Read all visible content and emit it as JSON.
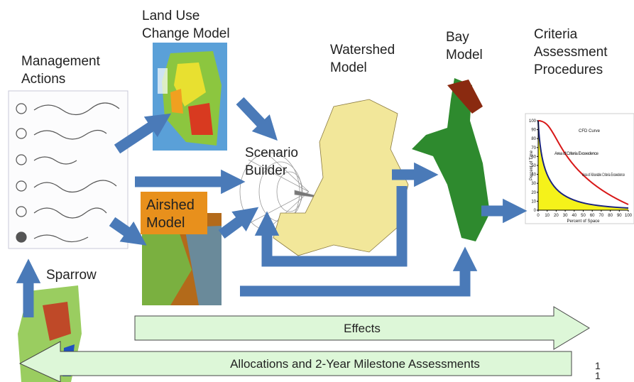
{
  "land_use": {
    "label": [
      "Land Use",
      "Change Model"
    ]
  },
  "management": {
    "label": [
      "Management",
      "Actions"
    ]
  },
  "watershed": {
    "label": [
      "Watershed",
      "Model"
    ]
  },
  "bay": {
    "label": [
      "Bay",
      "Model"
    ]
  },
  "criteria": {
    "label": [
      "Criteria",
      "Assessment",
      "Procedures"
    ],
    "chart": {
      "ylabel": "Percent of Time",
      "xlabel": "Percent of Space",
      "yticks": [
        0,
        10,
        20,
        30,
        40,
        50,
        60,
        70,
        80,
        90,
        100
      ],
      "xticks": [
        0,
        10,
        20,
        30,
        40,
        50,
        60,
        70,
        80,
        90,
        100
      ],
      "annotations": [
        "CFD Curve",
        "Area of Criteria Exceedence",
        "Area of Allowable Criteria Exceedence"
      ]
    }
  },
  "scenario": {
    "label": [
      "Scenario",
      "Builder"
    ]
  },
  "airshed": {
    "label": [
      "Airshed",
      "Model"
    ]
  },
  "sparrow": {
    "label": "Sparrow"
  },
  "effects": {
    "label": "Effects"
  },
  "allocations": {
    "label": "Allocations and 2-Year Milestone Assessments"
  },
  "page_number": [
    "1",
    "1"
  ]
}
